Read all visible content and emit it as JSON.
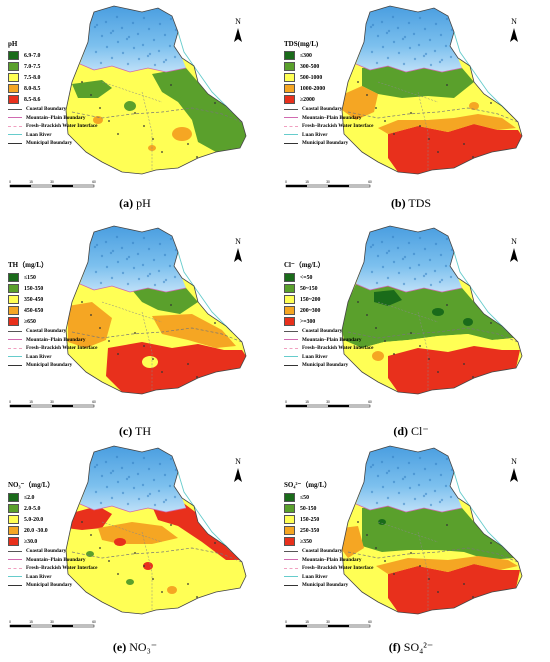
{
  "panels": [
    {
      "id": "ph",
      "legend_title": "pH",
      "classes": [
        {
          "label": "6.9-7.0",
          "color": "#1a6b1a"
        },
        {
          "label": "7.0-7.5",
          "color": "#5aa02c"
        },
        {
          "label": "7.5-8.0",
          "color": "#ffff55"
        },
        {
          "label": "8.0-8.5",
          "color": "#f5a623"
        },
        {
          "label": "8.5-8.6",
          "color": "#e8301c"
        }
      ],
      "caption_letter": "(a)",
      "caption_text": " pH"
    },
    {
      "id": "tds",
      "legend_title": "TDS(mg/L)",
      "classes": [
        {
          "label": "≤300",
          "color": "#1a6b1a"
        },
        {
          "label": "300-500",
          "color": "#5aa02c"
        },
        {
          "label": "500-1000",
          "color": "#ffff55"
        },
        {
          "label": "1000-2000",
          "color": "#f5a623"
        },
        {
          "label": "≥2000",
          "color": "#e8301c"
        }
      ],
      "caption_letter": "(b)",
      "caption_text": " TDS"
    },
    {
      "id": "th",
      "legend_title": "TH（mg/L）",
      "classes": [
        {
          "label": "≤150",
          "color": "#1a6b1a"
        },
        {
          "label": "150-350",
          "color": "#5aa02c"
        },
        {
          "label": "350-450",
          "color": "#ffff55"
        },
        {
          "label": "450-650",
          "color": "#f5a623"
        },
        {
          "label": "≥650",
          "color": "#e8301c"
        }
      ],
      "caption_letter": "(c)",
      "caption_text": " TH"
    },
    {
      "id": "cl",
      "legend_title": "Cl⁻（mg/L）",
      "classes": [
        {
          "label": "<=50",
          "color": "#1a6b1a"
        },
        {
          "label": "50~150",
          "color": "#5aa02c"
        },
        {
          "label": "150~200",
          "color": "#ffff55"
        },
        {
          "label": "200~300",
          "color": "#f5a623"
        },
        {
          "label": ">=300",
          "color": "#e8301c"
        }
      ],
      "caption_letter": "(d)",
      "caption_text": " Cl⁻"
    },
    {
      "id": "no3",
      "legend_title": "NO₃⁻（mg/L）",
      "classes": [
        {
          "label": "≤2.0",
          "color": "#1a6b1a"
        },
        {
          "label": "2.0-5.0",
          "color": "#5aa02c"
        },
        {
          "label": "5.0-20.0",
          "color": "#ffff55"
        },
        {
          "label": "20.0 -30.0",
          "color": "#f5a623"
        },
        {
          "label": "≥30.0",
          "color": "#e8301c"
        }
      ],
      "caption_letter": "(e)",
      "caption_text": " NO₃⁻"
    },
    {
      "id": "so4",
      "legend_title": "SO₄²⁻（mg/L）",
      "classes": [
        {
          "label": "≤50",
          "color": "#1a6b1a"
        },
        {
          "label": "50-150",
          "color": "#5aa02c"
        },
        {
          "label": "150-250",
          "color": "#ffff55"
        },
        {
          "label": "250-350",
          "color": "#f5a623"
        },
        {
          "label": "≥350",
          "color": "#e8301c"
        }
      ],
      "caption_letter": "(f)",
      "caption_text": " SO₄²⁻"
    }
  ],
  "lines_standard": [
    {
      "label": "Coastal Boundary",
      "color": "#555555",
      "dash": "none"
    },
    {
      "label": "Mountain–Plain Boundary",
      "color": "#d06ab0",
      "dash": "none"
    },
    {
      "label": "Fresh–Brackish Water Interface",
      "color": "#f0a0c0",
      "dash": "3,2"
    },
    {
      "label": "Luan River",
      "color": "#66cccc",
      "dash": "none"
    },
    {
      "label": "Municipal Boundary",
      "color": "#333333",
      "dash": "none"
    }
  ],
  "lines_ph_tds_order": [
    0,
    1,
    2,
    3,
    4
  ],
  "north_label": "N",
  "scale_labels": [
    "0",
    "15",
    "30",
    "60"
  ],
  "mountain_color": "#4a9ee0",
  "mountain_light": "#bfe0f8"
}
